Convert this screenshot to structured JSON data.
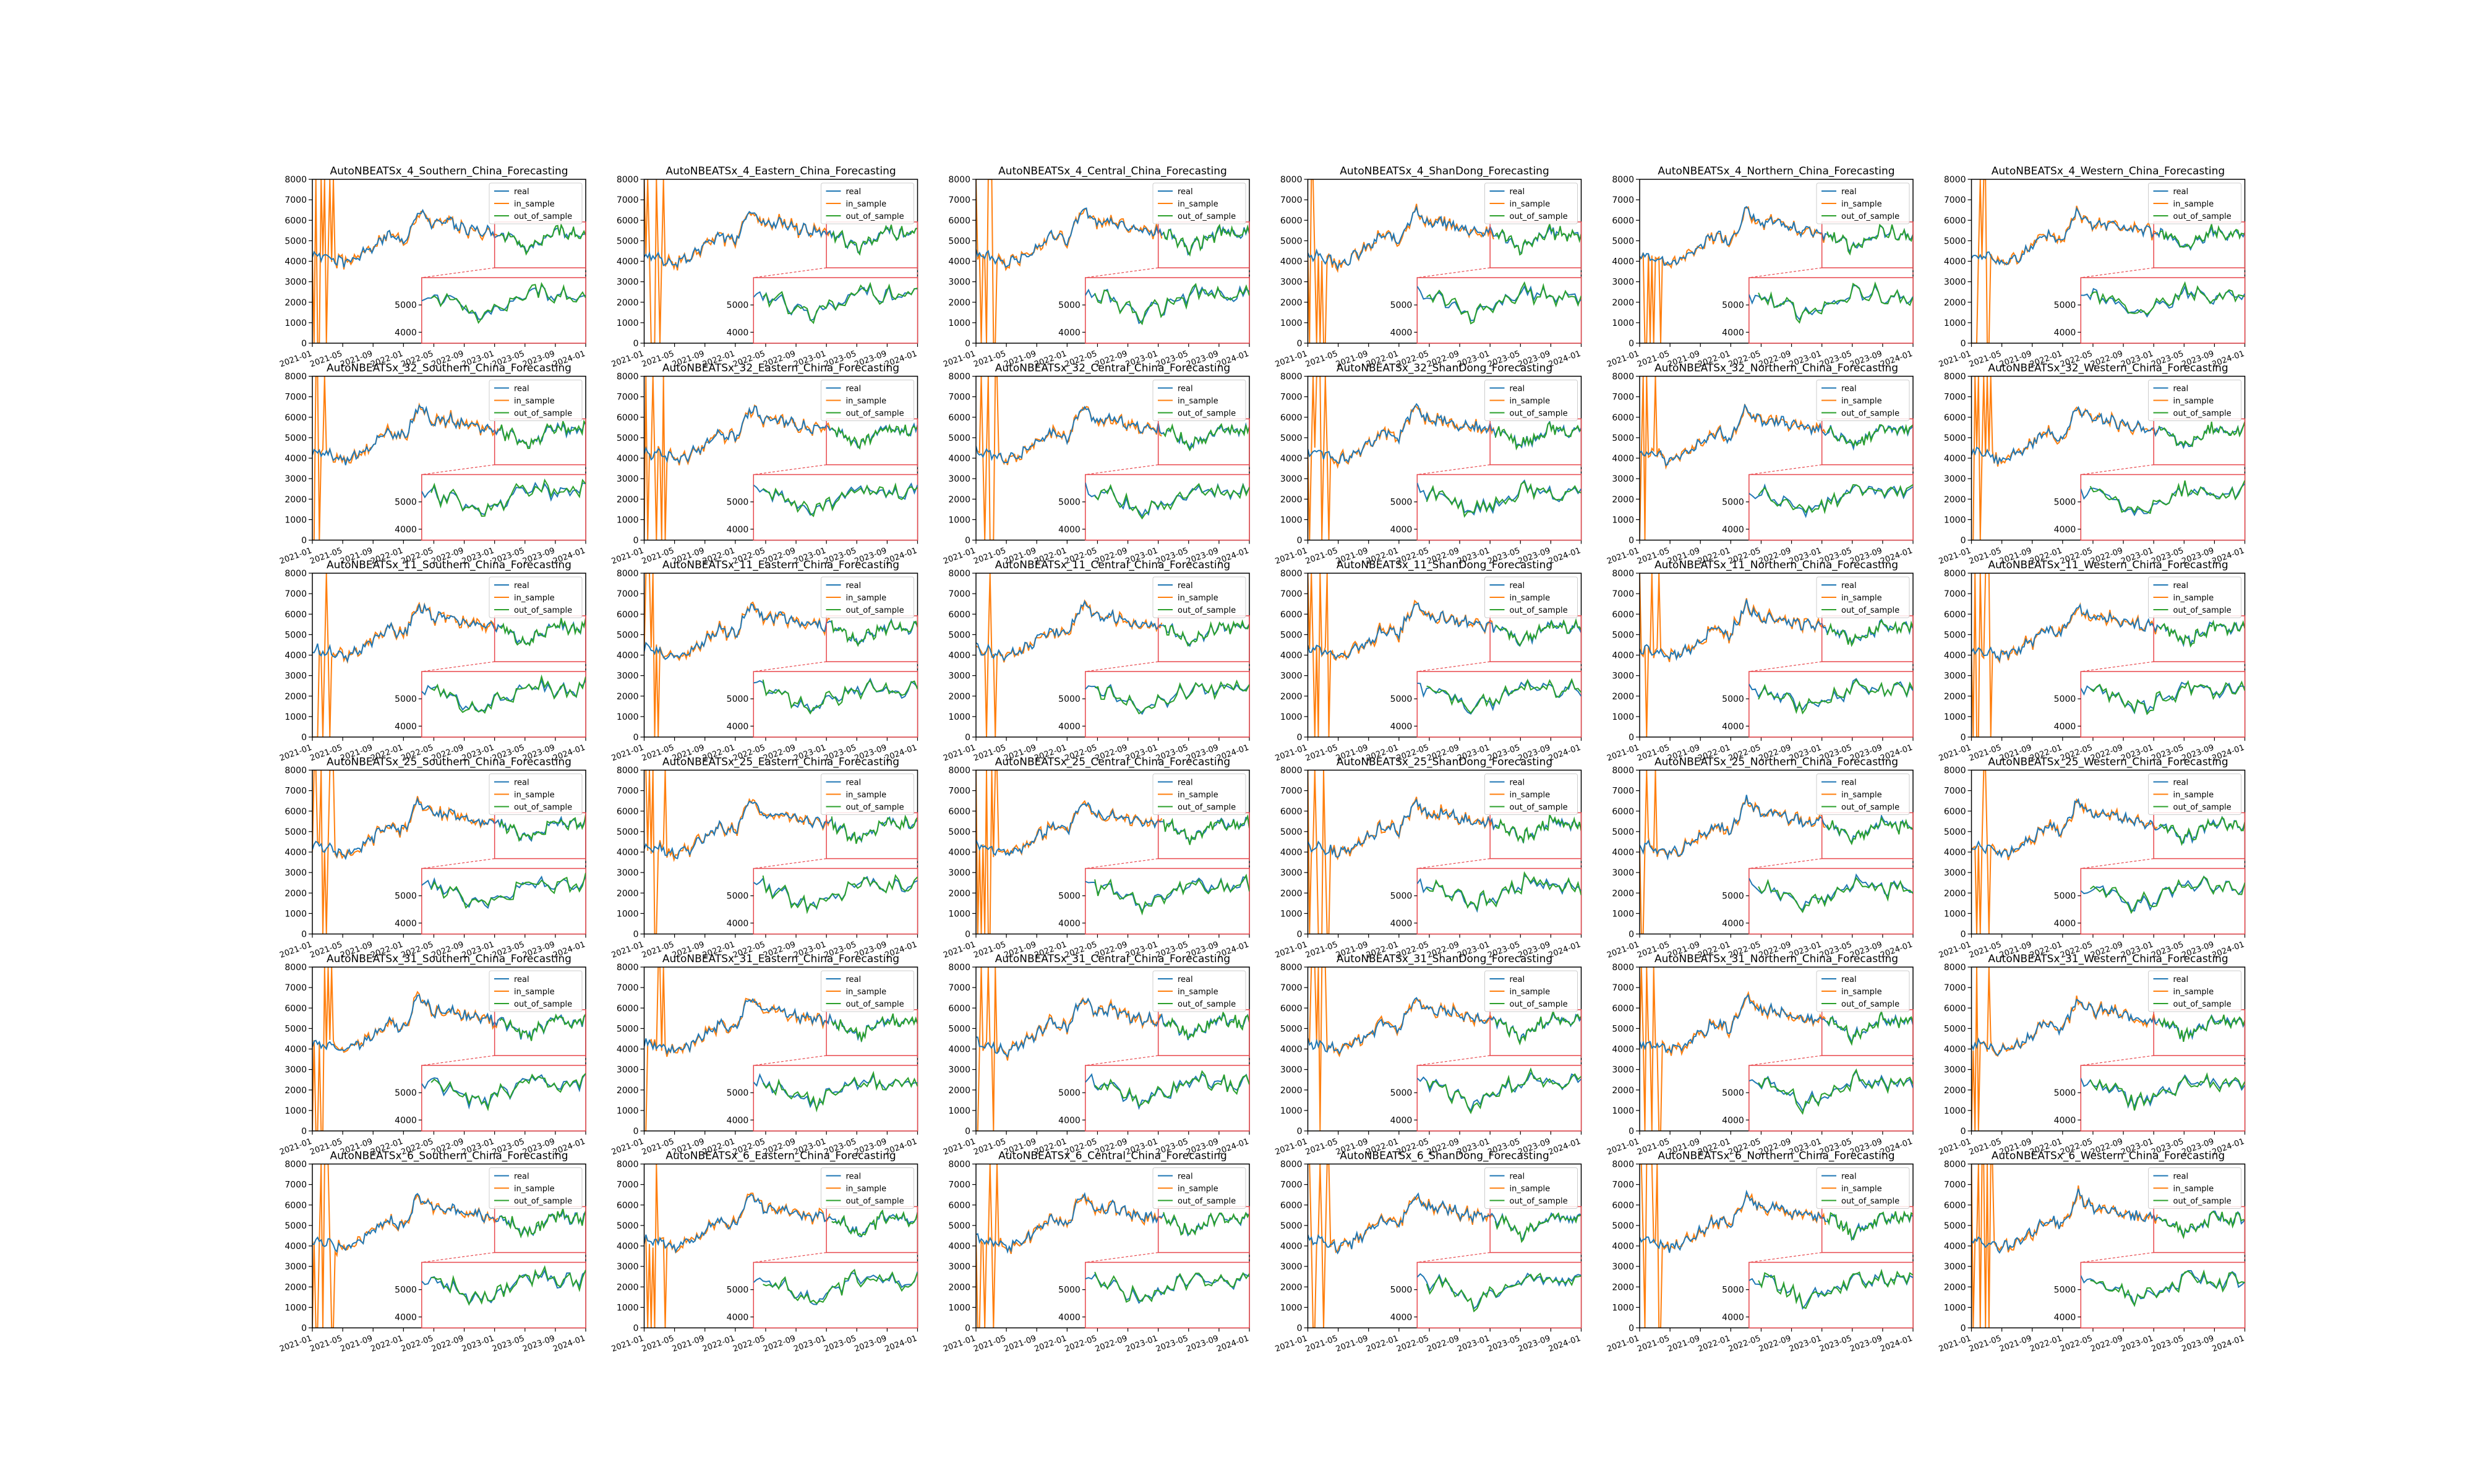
{
  "figure": {
    "rows": 6,
    "cols": 6,
    "colors": {
      "real": "#1f77b4",
      "in_sample": "#ff7f0e",
      "out_of_sample": "#2ca02c",
      "zoom_box": "#e8474c"
    }
  },
  "chart_data": {
    "type": "line",
    "shared": {
      "legend": {
        "placement": "upper-right",
        "entries": [
          "real",
          "in_sample",
          "out_of_sample"
        ]
      },
      "xtick_labels": [
        "2021-01",
        "2021-05",
        "2021-09",
        "2022-01",
        "2022-05",
        "2022-09",
        "2023-01",
        "2023-05",
        "2023-09",
        "2024-01"
      ],
      "ylim": [
        0,
        8000
      ],
      "yticks": [
        0,
        1000,
        2000,
        3000,
        4000,
        5000,
        6000,
        7000,
        8000
      ],
      "real": {
        "x": [
          "2021-01",
          "2021-03",
          "2021-05",
          "2021-07",
          "2021-09",
          "2021-11",
          "2022-01",
          "2022-03",
          "2022-05",
          "2022-07",
          "2022-09",
          "2022-11",
          "2023-01",
          "2023-03",
          "2023-05",
          "2023-07",
          "2023-09",
          "2023-11",
          "2024-01"
        ],
        "y": [
          4300,
          4200,
          3900,
          4200,
          4700,
          5300,
          5000,
          6500,
          5800,
          5900,
          5600,
          5500,
          5400,
          5200,
          4600,
          5000,
          5500,
          5300,
          5400
        ]
      },
      "zoom_inset": {
        "x_range": [
          "2023-01",
          "2024-01"
        ],
        "yticks": [
          4000,
          5000
        ]
      }
    },
    "panels": [
      {
        "title": "AutoNBEATSx_4_Southern_China_Forecasting"
      },
      {
        "title": "AutoNBEATSx_4_Eastern_China_Forecasting"
      },
      {
        "title": "AutoNBEATSx_4_Central_China_Forecasting"
      },
      {
        "title": "AutoNBEATSx_4_ShanDong_Forecasting"
      },
      {
        "title": "AutoNBEATSx_4_Northern_China_Forecasting"
      },
      {
        "title": "AutoNBEATSx_4_Western_China_Forecasting"
      },
      {
        "title": "AutoNBEATSx_32_Southern_China_Forecasting"
      },
      {
        "title": "AutoNBEATSx_32_Eastern_China_Forecasting"
      },
      {
        "title": "AutoNBEATSx_32_Central_China_Forecasting"
      },
      {
        "title": "AutoNBEATSx_32_ShanDong_Forecasting"
      },
      {
        "title": "AutoNBEATSx_32_Northern_China_Forecasting"
      },
      {
        "title": "AutoNBEATSx_32_Western_China_Forecasting"
      },
      {
        "title": "AutoNBEATSx_11_Southern_China_Forecasting"
      },
      {
        "title": "AutoNBEATSx_11_Eastern_China_Forecasting"
      },
      {
        "title": "AutoNBEATSx_11_Central_China_Forecasting"
      },
      {
        "title": "AutoNBEATSx_11_ShanDong_Forecasting"
      },
      {
        "title": "AutoNBEATSx_11_Northern_China_Forecasting"
      },
      {
        "title": "AutoNBEATSx_11_Western_China_Forecasting"
      },
      {
        "title": "AutoNBEATSx_25_Southern_China_Forecasting"
      },
      {
        "title": "AutoNBEATSx_25_Eastern_China_Forecasting"
      },
      {
        "title": "AutoNBEATSx_25_Central_China_Forecasting"
      },
      {
        "title": "AutoNBEATSx_25_ShanDong_Forecasting"
      },
      {
        "title": "AutoNBEATSx_25_Northern_China_Forecasting"
      },
      {
        "title": "AutoNBEATSx_25_Western_China_Forecasting"
      },
      {
        "title": "AutoNBEATSx_31_Southern_China_Forecasting"
      },
      {
        "title": "AutoNBEATSx_31_Eastern_China_Forecasting"
      },
      {
        "title": "AutoNBEATSx_31_Central_China_Forecasting"
      },
      {
        "title": "AutoNBEATSx_31_ShanDong_Forecasting"
      },
      {
        "title": "AutoNBEATSx_31_Northern_China_Forecasting"
      },
      {
        "title": "AutoNBEATSx_31_Western_China_Forecasting"
      },
      {
        "title": "AutoNBEATSx_6_Southern_China_Forecasting"
      },
      {
        "title": "AutoNBEATSx_6_Eastern_China_Forecasting"
      },
      {
        "title": "AutoNBEATSx_6_Central_China_Forecasting"
      },
      {
        "title": "AutoNBEATSx_6_ShanDong_Forecasting"
      },
      {
        "title": "AutoNBEATSx_6_Northern_China_Forecasting"
      },
      {
        "title": "AutoNBEATSx_6_Western_China_Forecasting"
      }
    ]
  }
}
